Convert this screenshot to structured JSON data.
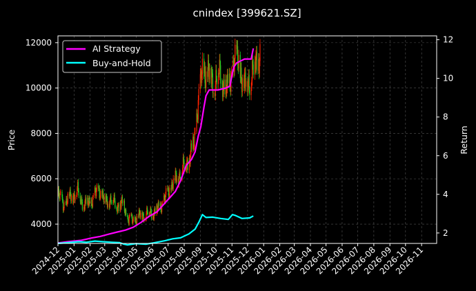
{
  "chart_data": {
    "type": "line",
    "title": "cnindex [399621.SZ]",
    "ylabel": "Price",
    "y2label": "Return",
    "ylim": [
      3150,
      12300
    ],
    "y2lim": [
      1.46,
      12.2
    ],
    "yticks": [
      4000,
      6000,
      8000,
      10000,
      12000
    ],
    "y2ticks": [
      2,
      4,
      6,
      8,
      10,
      12
    ],
    "x_start": "2024-12-01",
    "x_end": "2026-11-30",
    "xticks": [
      "2024-12",
      "2025-01",
      "2025-02",
      "2025-03",
      "2025-04",
      "2025-05",
      "2025-06",
      "2025-07",
      "2025-08",
      "2025-09",
      "2025-10",
      "2025-11",
      "2025-12",
      "2026-01",
      "2026-02",
      "2026-03",
      "2026-04",
      "2026-05",
      "2026-06",
      "2026-07",
      "2026-08",
      "2026-09",
      "2026-10",
      "2026-11"
    ],
    "grid": true,
    "legend_position": "top-left",
    "colors": {
      "up": "#ff2200",
      "down": "#22cc22",
      "ai": "#ff00ff",
      "bh": "#00ffff",
      "grid": "#555555",
      "axis": "#ffffff"
    },
    "price_series": [
      [
        "2024-12-01",
        5300
      ],
      [
        "2024-12-12",
        4850
      ],
      [
        "2024-12-25",
        5200
      ],
      [
        "2025-01-08",
        5450
      ],
      [
        "2025-01-20",
        4850
      ],
      [
        "2025-02-05",
        5050
      ],
      [
        "2025-02-18",
        5550
      ],
      [
        "2025-02-28",
        5000
      ],
      [
        "2025-03-12",
        5100
      ],
      [
        "2025-03-25",
        4850
      ],
      [
        "2025-04-07",
        4850
      ],
      [
        "2025-04-14",
        4200
      ],
      [
        "2025-04-25",
        4150
      ],
      [
        "2025-05-10",
        4400
      ],
      [
        "2025-05-25",
        4500
      ],
      [
        "2025-06-10",
        4600
      ],
      [
        "2025-06-25",
        5100
      ],
      [
        "2025-07-10",
        5800
      ],
      [
        "2025-07-25",
        6300
      ],
      [
        "2025-08-10",
        6900
      ],
      [
        "2025-08-20",
        7500
      ],
      [
        "2025-08-28",
        9500
      ],
      [
        "2025-09-05",
        10600
      ],
      [
        "2025-09-15",
        10800
      ],
      [
        "2025-09-25",
        10200
      ],
      [
        "2025-10-05",
        10700
      ],
      [
        "2025-10-15",
        10300
      ],
      [
        "2025-10-25",
        9800
      ],
      [
        "2025-11-05",
        11300
      ],
      [
        "2025-11-15",
        11000
      ],
      [
        "2025-11-25",
        10100
      ],
      [
        "2025-12-05",
        10400
      ],
      [
        "2025-12-15",
        11000
      ],
      [
        "2025-12-25",
        11600
      ]
    ],
    "series": [
      {
        "name": "AI Strategy",
        "axis": "right",
        "points": [
          [
            "2024-12-01",
            1.48
          ],
          [
            "2024-12-20",
            1.55
          ],
          [
            "2025-01-15",
            1.62
          ],
          [
            "2025-02-05",
            1.75
          ],
          [
            "2025-02-20",
            1.82
          ],
          [
            "2025-03-10",
            1.95
          ],
          [
            "2025-03-25",
            2.05
          ],
          [
            "2025-04-10",
            2.15
          ],
          [
            "2025-04-25",
            2.3
          ],
          [
            "2025-05-10",
            2.55
          ],
          [
            "2025-05-25",
            2.85
          ],
          [
            "2025-06-10",
            3.1
          ],
          [
            "2025-06-25",
            3.55
          ],
          [
            "2025-07-05",
            3.85
          ],
          [
            "2025-07-15",
            4.15
          ],
          [
            "2025-07-25",
            4.7
          ],
          [
            "2025-08-05",
            5.5
          ],
          [
            "2025-08-15",
            5.8
          ],
          [
            "2025-08-22",
            6.2
          ],
          [
            "2025-08-28",
            7.0
          ],
          [
            "2025-09-02",
            7.5
          ],
          [
            "2025-09-08",
            8.5
          ],
          [
            "2025-09-12",
            9.1
          ],
          [
            "2025-09-18",
            9.4
          ],
          [
            "2025-10-05",
            9.4
          ],
          [
            "2025-10-20",
            9.5
          ],
          [
            "2025-10-28",
            9.6
          ],
          [
            "2025-11-02",
            10.3
          ],
          [
            "2025-11-05",
            10.6
          ],
          [
            "2025-11-10",
            10.8
          ],
          [
            "2025-11-25",
            11.0
          ],
          [
            "2025-12-08",
            11.0
          ],
          [
            "2025-12-12",
            11.55
          ]
        ]
      },
      {
        "name": "Buy-and-Hold",
        "axis": "right",
        "points": [
          [
            "2024-12-01",
            1.46
          ],
          [
            "2024-12-20",
            1.5
          ],
          [
            "2025-01-10",
            1.55
          ],
          [
            "2025-01-25",
            1.52
          ],
          [
            "2025-02-10",
            1.58
          ],
          [
            "2025-02-25",
            1.55
          ],
          [
            "2025-03-15",
            1.52
          ],
          [
            "2025-03-30",
            1.5
          ],
          [
            "2025-04-07",
            1.42
          ],
          [
            "2025-04-14",
            1.38
          ],
          [
            "2025-04-30",
            1.45
          ],
          [
            "2025-05-20",
            1.42
          ],
          [
            "2025-06-05",
            1.5
          ],
          [
            "2025-06-25",
            1.6
          ],
          [
            "2025-07-10",
            1.7
          ],
          [
            "2025-07-25",
            1.75
          ],
          [
            "2025-08-10",
            1.95
          ],
          [
            "2025-08-22",
            2.2
          ],
          [
            "2025-08-30",
            2.6
          ],
          [
            "2025-09-05",
            2.95
          ],
          [
            "2025-09-12",
            2.8
          ],
          [
            "2025-09-25",
            2.82
          ],
          [
            "2025-10-10",
            2.75
          ],
          [
            "2025-10-25",
            2.7
          ],
          [
            "2025-11-02",
            2.95
          ],
          [
            "2025-11-08",
            2.9
          ],
          [
            "2025-11-20",
            2.75
          ],
          [
            "2025-12-05",
            2.78
          ],
          [
            "2025-12-12",
            2.88
          ]
        ]
      }
    ]
  }
}
